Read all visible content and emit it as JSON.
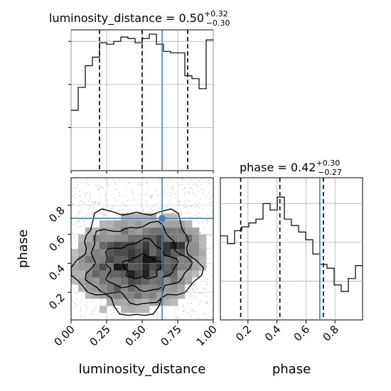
{
  "chart_data": {
    "type": "corner",
    "truth": {
      "luminosity_distance": 0.64,
      "phase": 0.71
    },
    "luminosity_distance": {
      "title": {
        "main": "luminosity_distance = 0.50",
        "plus": "+0.32",
        "minus": "−0.30"
      },
      "xlabel": "luminosity_distance",
      "ticks": [
        0.0,
        0.25,
        0.5,
        0.75,
        1.0
      ],
      "tick_labels": [
        "0.00",
        "0.25",
        "0.50",
        "0.75",
        "1.00"
      ],
      "xlim": [
        0.0,
        1.0
      ],
      "quantiles": [
        0.2,
        0.5,
        0.82
      ],
      "hist_edges": [
        0.0,
        0.05,
        0.1,
        0.15,
        0.2,
        0.25,
        0.3,
        0.35,
        0.4,
        0.45,
        0.5,
        0.55,
        0.6,
        0.65,
        0.7,
        0.75,
        0.8,
        0.85,
        0.9,
        0.95,
        1.0
      ],
      "hist_counts": [
        42,
        58,
        73,
        79,
        89,
        88,
        90,
        93,
        92,
        89,
        92,
        95,
        88,
        83,
        82,
        82,
        66,
        64,
        57,
        91
      ]
    },
    "phase": {
      "title": {
        "main": "phase = 0.42",
        "plus": "+0.30",
        "minus": "−0.27"
      },
      "xlabel": "phase",
      "ylabel": "phase",
      "ticks": [
        0.2,
        0.4,
        0.6,
        0.8
      ],
      "tick_labels": [
        "0.2",
        "0.4",
        "0.6",
        "0.8"
      ],
      "xlim": [
        0.01,
        0.99
      ],
      "quantiles": [
        0.15,
        0.42,
        0.72
      ],
      "hist_edges": [
        0.01,
        0.059,
        0.108,
        0.157,
        0.206,
        0.255,
        0.304,
        0.353,
        0.402,
        0.451,
        0.5,
        0.549,
        0.598,
        0.647,
        0.696,
        0.745,
        0.794,
        0.843,
        0.892,
        0.941,
        0.99
      ],
      "hist_counts": [
        65,
        59,
        69,
        72,
        75,
        78,
        90,
        85,
        95,
        78,
        73,
        68,
        62,
        51,
        43,
        40,
        27,
        22,
        32,
        42
      ]
    }
  }
}
